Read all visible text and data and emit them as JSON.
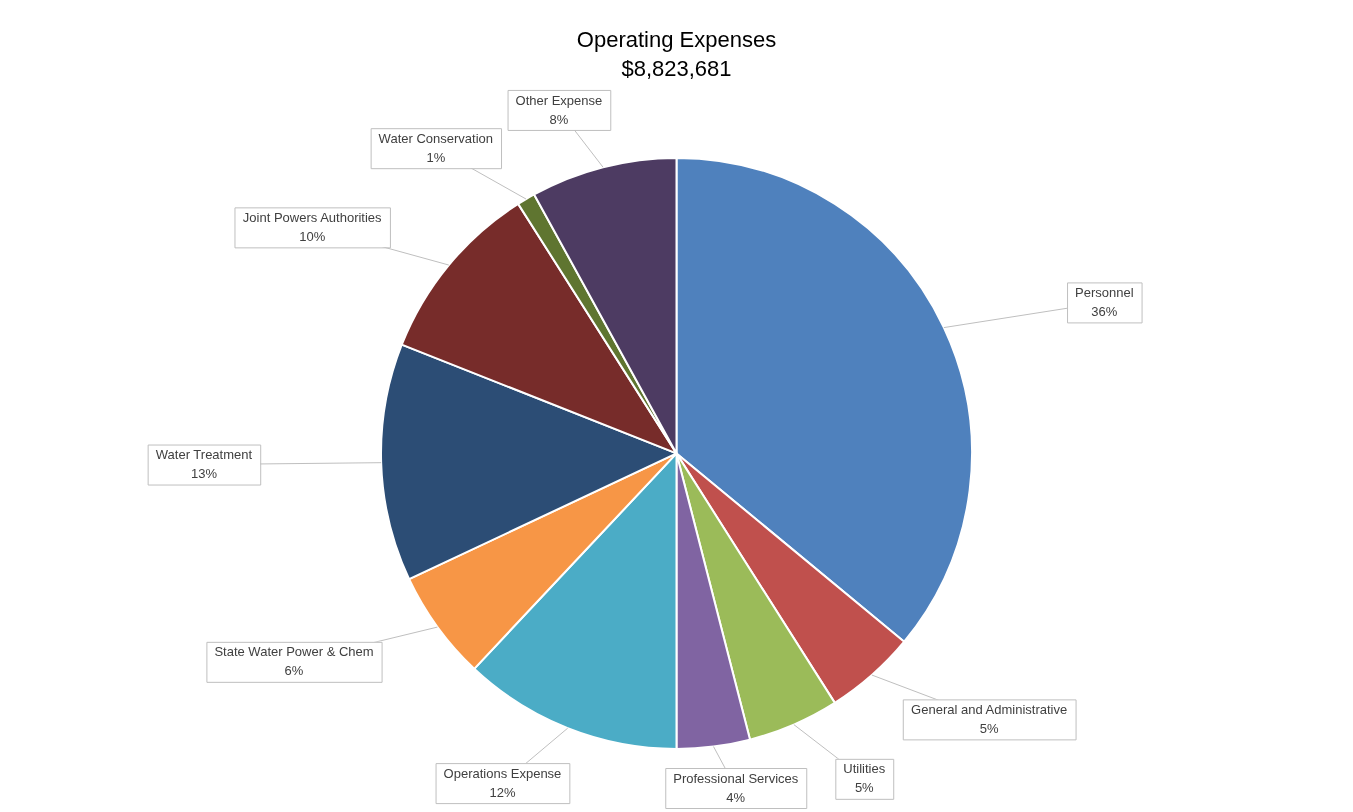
{
  "chart_data": {
    "type": "pie",
    "title": "Operating Expenses",
    "subtitle": "$8,823,681",
    "categories": [
      "Personnel",
      "General and Administrative",
      "Utilities",
      "Professional Services",
      "Operations Expense",
      "State Water Power & Chem",
      "Water Treatment",
      "Joint Powers Authorities",
      "Water Conservation",
      "Other Expense"
    ],
    "values": [
      36,
      5,
      5,
      4,
      12,
      6,
      13,
      10,
      1,
      8
    ],
    "colors": [
      "#4f81bd",
      "#c0504d",
      "#9bbb59",
      "#8064a2",
      "#4bacc6",
      "#f79646",
      "#2c4d75",
      "#772c2a",
      "#5f7530",
      "#4d3b62"
    ],
    "value_labels": [
      "36%",
      "5%",
      "5%",
      "4%",
      "12%",
      "6%",
      "13%",
      "10%",
      "1%",
      "8%"
    ],
    "legend": false
  }
}
